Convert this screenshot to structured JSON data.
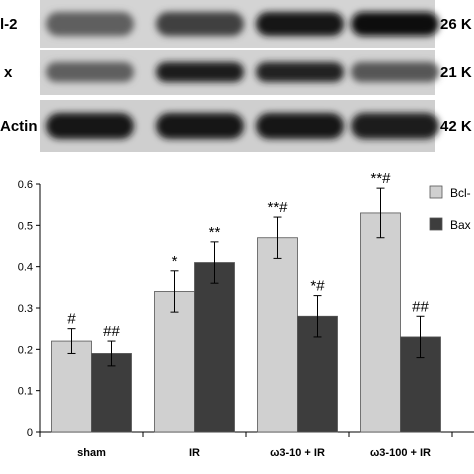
{
  "blot": {
    "rows": [
      {
        "label": "l-2",
        "size": "26 K",
        "intensity": [
          0.55,
          0.72,
          0.92,
          0.98
        ]
      },
      {
        "label": "x",
        "size": "21 K",
        "intensity": [
          0.55,
          0.9,
          0.88,
          0.6
        ]
      },
      {
        "label": "Actin",
        "size": "42 K",
        "intensity": [
          0.95,
          0.92,
          0.93,
          0.9
        ]
      }
    ]
  },
  "chart_data": {
    "type": "bar",
    "categories": [
      "sham",
      "IR",
      "ω3-10 + IR",
      "ω3-100 + IR"
    ],
    "series": [
      {
        "name": "Bcl-",
        "color": "#d0d0d0",
        "values": [
          0.22,
          0.34,
          0.47,
          0.53
        ],
        "errors": [
          0.03,
          0.05,
          0.05,
          0.06
        ],
        "annotations": [
          "#",
          "*",
          "**#",
          "**#"
        ]
      },
      {
        "name": "Bax",
        "color": "#3d3d3d",
        "values": [
          0.19,
          0.41,
          0.28,
          0.23
        ],
        "errors": [
          0.03,
          0.05,
          0.05,
          0.05
        ],
        "annotations": [
          "##",
          "**",
          "*#",
          "##"
        ]
      }
    ],
    "yticks": [
      "0",
      "0.1",
      "0.2",
      "0.3",
      "0.4",
      "0.5",
      "0.6"
    ],
    "ylim": [
      0,
      0.6
    ],
    "legend_position": "top-right",
    "grid": false
  }
}
